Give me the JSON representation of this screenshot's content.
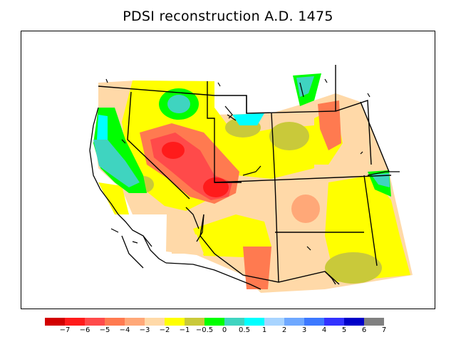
{
  "title": "PDSI reconstruction A.D. 1475",
  "colorbar": {
    "colors": [
      "#d20000",
      "#ff1b1b",
      "#ff4a4a",
      "#ff7a50",
      "#ffa878",
      "#ffd9a8",
      "#ffff00",
      "#c9c93a",
      "#00ff00",
      "#3fd4c0",
      "#00ffff",
      "#a8d4ff",
      "#6ea8ff",
      "#3c78ff",
      "#3232ff",
      "#0000c8",
      "#808080"
    ],
    "labels": [
      "−7",
      "−6",
      "−5",
      "−4",
      "−3",
      "−2",
      "−1",
      "−0.5",
      "0",
      "0.5",
      "1",
      "2",
      "3",
      "4",
      "5",
      "6",
      "7"
    ]
  }
}
